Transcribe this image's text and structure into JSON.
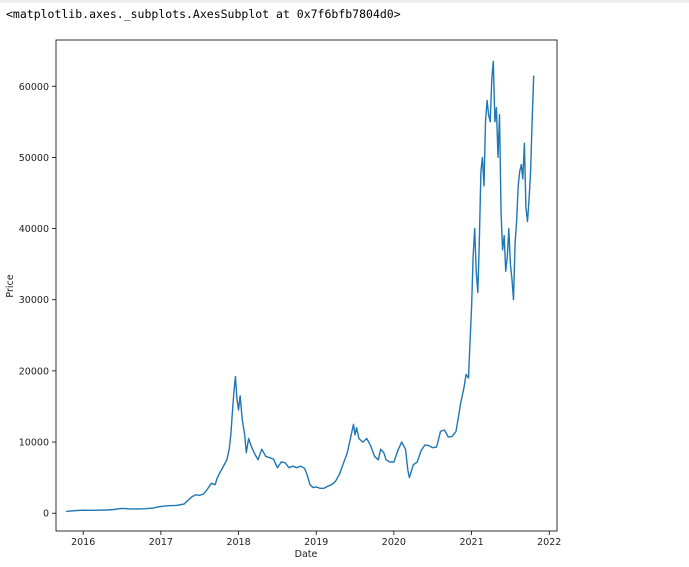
{
  "output": {
    "repr": "<matplotlib.axes._subplots.AxesSubplot at 0x7f6bfb7804d0>"
  },
  "chart_data": {
    "type": "line",
    "title": "",
    "xlabel": "Date",
    "ylabel": "Price",
    "xlim": [
      2015.65,
      2022.1
    ],
    "ylim": [
      -2500,
      66500
    ],
    "xticks": [
      2016,
      2017,
      2018,
      2019,
      2020,
      2021,
      2022
    ],
    "xtick_labels": [
      "2016",
      "2017",
      "2018",
      "2019",
      "2020",
      "2021",
      "2022"
    ],
    "yticks": [
      0,
      10000,
      20000,
      30000,
      40000,
      50000,
      60000
    ],
    "ytick_labels": [
      "0",
      "10000",
      "20000",
      "30000",
      "40000",
      "50000",
      "60000"
    ],
    "grid": false,
    "line_color": "#1f77b4",
    "series": [
      {
        "x": [
          2015.78,
          2015.85,
          2015.92,
          2016.0,
          2016.1,
          2016.2,
          2016.3,
          2016.4,
          2016.45,
          2016.5,
          2016.55,
          2016.6,
          2016.7,
          2016.8,
          2016.9,
          2016.97,
          2017.05,
          2017.1,
          2017.2,
          2017.3,
          2017.35,
          2017.4,
          2017.45,
          2017.5,
          2017.55,
          2017.6,
          2017.65,
          2017.7,
          2017.72,
          2017.75,
          2017.8,
          2017.85,
          2017.88,
          2017.9,
          2017.92,
          2017.94,
          2017.96,
          2017.98,
          2018.0,
          2018.02,
          2018.05,
          2018.08,
          2018.1,
          2018.13,
          2018.16,
          2018.2,
          2018.25,
          2018.3,
          2018.35,
          2018.4,
          2018.45,
          2018.5,
          2018.55,
          2018.6,
          2018.65,
          2018.7,
          2018.75,
          2018.8,
          2018.85,
          2018.88,
          2018.92,
          2018.96,
          2019.0,
          2019.05,
          2019.1,
          2019.15,
          2019.2,
          2019.25,
          2019.3,
          2019.35,
          2019.4,
          2019.45,
          2019.48,
          2019.5,
          2019.52,
          2019.55,
          2019.6,
          2019.65,
          2019.7,
          2019.75,
          2019.8,
          2019.83,
          2019.87,
          2019.9,
          2019.95,
          2020.0,
          2020.05,
          2020.1,
          2020.15,
          2020.18,
          2020.2,
          2020.25,
          2020.3,
          2020.35,
          2020.4,
          2020.45,
          2020.5,
          2020.55,
          2020.6,
          2020.65,
          2020.7,
          2020.75,
          2020.8,
          2020.83,
          2020.86,
          2020.9,
          2020.93,
          2020.96,
          2020.98,
          2021.0,
          2021.02,
          2021.04,
          2021.06,
          2021.08,
          2021.1,
          2021.12,
          2021.14,
          2021.16,
          2021.18,
          2021.2,
          2021.22,
          2021.24,
          2021.26,
          2021.28,
          2021.3,
          2021.32,
          2021.34,
          2021.36,
          2021.38,
          2021.4,
          2021.42,
          2021.44,
          2021.46,
          2021.48,
          2021.5,
          2021.52,
          2021.54,
          2021.56,
          2021.58,
          2021.6,
          2021.62,
          2021.64,
          2021.66,
          2021.68,
          2021.7,
          2021.72,
          2021.74,
          2021.76,
          2021.78,
          2021.8
        ],
        "values": [
          250,
          320,
          380,
          430,
          410,
          420,
          450,
          520,
          620,
          680,
          650,
          600,
          610,
          640,
          720,
          900,
          1000,
          1050,
          1100,
          1300,
          1800,
          2300,
          2600,
          2500,
          2700,
          3400,
          4200,
          4000,
          4800,
          5500,
          6500,
          7500,
          9000,
          11000,
          14000,
          17000,
          19200,
          16000,
          14500,
          16500,
          13000,
          11000,
          8500,
          10500,
          9500,
          8500,
          7500,
          9000,
          8000,
          7800,
          7600,
          6400,
          7200,
          7100,
          6400,
          6600,
          6400,
          6600,
          6300,
          5500,
          4000,
          3600,
          3700,
          3500,
          3500,
          3800,
          4000,
          4500,
          5500,
          7000,
          8500,
          11000,
          12500,
          11000,
          12000,
          10500,
          10000,
          10500,
          9500,
          8000,
          7500,
          9000,
          8500,
          7500,
          7200,
          7200,
          8800,
          10000,
          9000,
          6000,
          5000,
          6800,
          7200,
          8800,
          9600,
          9500,
          9200,
          9300,
          11500,
          11700,
          10700,
          10800,
          11500,
          13500,
          15500,
          17500,
          19500,
          19000,
          24000,
          29000,
          36000,
          40000,
          34000,
          31000,
          38000,
          48000,
          50000,
          46000,
          55000,
          58000,
          56000,
          55000,
          61000,
          63500,
          55000,
          57000,
          50000,
          56000,
          42000,
          37000,
          39000,
          34000,
          36000,
          40000,
          35000,
          33000,
          30000,
          38000,
          41000,
          46000,
          48000,
          49000,
          47000,
          52000,
          43000,
          41000,
          44000,
          48000,
          55000,
          61500
        ]
      }
    ]
  }
}
